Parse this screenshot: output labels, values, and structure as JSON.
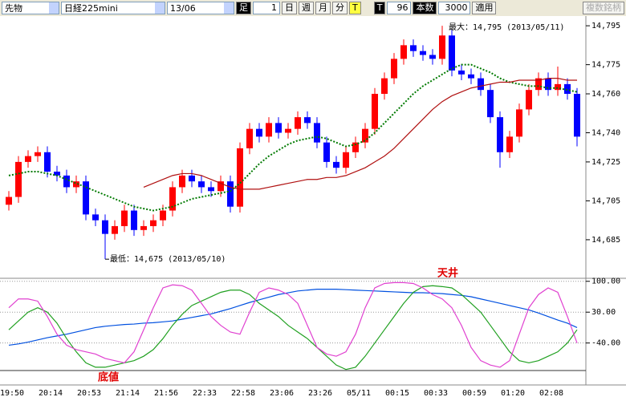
{
  "toolbar": {
    "market": "先物",
    "symbol": "日経225mini",
    "contract": "13/06",
    "bar_label": "足",
    "bar_count": "1",
    "periods": [
      "日",
      "週",
      "月",
      "分",
      "T"
    ],
    "tick_label": "T",
    "count": "96",
    "count_label": "本数",
    "count_max": "3000",
    "apply": "適用",
    "multi": "複数銘柄"
  },
  "chart_data": [
    {
      "type": "candlestick",
      "up_color": "#ff0000",
      "down_color": "#0000ff",
      "categories": [
        "19:50",
        null,
        null,
        null,
        "20:14",
        null,
        null,
        null,
        "20:53",
        null,
        null,
        null,
        "21:14",
        null,
        null,
        null,
        "21:56",
        null,
        null,
        null,
        "22:33",
        null,
        null,
        null,
        "22:58",
        null,
        null,
        null,
        "23:06",
        null,
        null,
        null,
        "23:26",
        null,
        null,
        null,
        "05/11",
        null,
        null,
        null,
        "00:15",
        null,
        null,
        null,
        "00:33",
        null,
        null,
        null,
        "00:59",
        null,
        null,
        null,
        "01:20",
        null,
        null,
        null,
        "02:08",
        null,
        null,
        null
      ],
      "open": [
        14703,
        14707,
        14725,
        14728,
        14730,
        14720,
        14718,
        14712,
        14715,
        14698,
        14695,
        14688,
        14692,
        14700,
        14690,
        14692,
        14695,
        14700,
        14712,
        14718,
        14715,
        14712,
        14710,
        14715,
        14702,
        14732,
        14742,
        14738,
        14745,
        14740,
        14742,
        14748,
        14745,
        14735,
        14725,
        14722,
        14730,
        14735,
        14742,
        14760,
        14768,
        14778,
        14785,
        14782,
        14780,
        14778,
        14790,
        14772,
        14770,
        14768,
        14762,
        14748,
        14730,
        14738,
        14752,
        14762,
        14768,
        14762,
        14765,
        14760
      ],
      "high": [
        14710,
        14728,
        14731,
        14733,
        14733,
        14723,
        14721,
        14718,
        14718,
        14701,
        14698,
        14695,
        14703,
        14703,
        14695,
        14698,
        14703,
        14715,
        14721,
        14721,
        14718,
        14715,
        14718,
        14718,
        14735,
        14745,
        14745,
        14748,
        14748,
        14745,
        14751,
        14751,
        14748,
        14738,
        14728,
        14733,
        14738,
        14745,
        14763,
        14771,
        14781,
        14788,
        14788,
        14785,
        14783,
        14795,
        14793,
        14775,
        14773,
        14771,
        14765,
        14751,
        14741,
        14755,
        14765,
        14771,
        14771,
        14774,
        14768,
        14763
      ],
      "low": [
        14700,
        14704,
        14722,
        14725,
        14717,
        14715,
        14709,
        14709,
        14695,
        14692,
        14675,
        14685,
        14689,
        14687,
        14687,
        14689,
        14692,
        14697,
        14709,
        14712,
        14709,
        14707,
        14707,
        14699,
        14699,
        14729,
        14735,
        14735,
        14737,
        14737,
        14739,
        14742,
        14732,
        14722,
        14719,
        14719,
        14727,
        14732,
        14739,
        14757,
        14765,
        14775,
        14779,
        14777,
        14775,
        14775,
        14769,
        14767,
        14765,
        14759,
        14745,
        14722,
        14727,
        14735,
        14749,
        14759,
        14759,
        14759,
        14757,
        14733
      ],
      "close": [
        14707,
        14725,
        14728,
        14730,
        14720,
        14718,
        14712,
        14715,
        14698,
        14695,
        14688,
        14692,
        14700,
        14690,
        14692,
        14695,
        14700,
        14712,
        14718,
        14715,
        14712,
        14710,
        14715,
        14702,
        14732,
        14742,
        14738,
        14745,
        14740,
        14742,
        14748,
        14745,
        14735,
        14725,
        14722,
        14730,
        14735,
        14742,
        14760,
        14768,
        14778,
        14785,
        14782,
        14780,
        14778,
        14790,
        14772,
        14770,
        14768,
        14762,
        14748,
        14730,
        14738,
        14752,
        14762,
        14768,
        14762,
        14765,
        14760,
        14738
      ],
      "overlays": [
        {
          "color": "#007a00",
          "dotted": true,
          "values": [
            14718,
            14719,
            14720,
            14720,
            14719,
            14718,
            14716,
            14714,
            14712,
            14710,
            14708,
            14706,
            14704,
            14702,
            14701,
            14700,
            14701,
            14702,
            14704,
            14706,
            14707,
            14708,
            14709,
            14710,
            14714,
            14719,
            14724,
            14728,
            14731,
            14734,
            14736,
            14737,
            14738,
            14737,
            14735,
            14733,
            14734,
            14736,
            14740,
            14745,
            14750,
            14755,
            14760,
            14764,
            14767,
            14770,
            14773,
            14775,
            14775,
            14773,
            14771,
            14768,
            14766,
            14765,
            14764,
            14764,
            14763,
            14763,
            14762,
            14761
          ]
        },
        {
          "color": "#b01010",
          "dotted": false,
          "values": [
            null,
            null,
            null,
            null,
            null,
            null,
            null,
            null,
            null,
            null,
            null,
            null,
            null,
            null,
            14712,
            14714,
            14716,
            14718,
            14719,
            14719,
            14718,
            14716,
            14714,
            14712,
            14711,
            14711,
            14711,
            14712,
            14713,
            14714,
            14715,
            14716,
            14716,
            14717,
            14717,
            14718,
            14720,
            14722,
            14725,
            14728,
            14732,
            14737,
            14742,
            14747,
            14752,
            14756,
            14759,
            14761,
            14763,
            14764,
            14765,
            14766,
            14766,
            14767,
            14767,
            14767,
            14768,
            14768,
            14767,
            14767
          ]
        }
      ],
      "ylim": [
        14666,
        14800
      ],
      "yticks": [
        {
          "value": 14685,
          "label": "14,685"
        },
        {
          "value": 14705,
          "label": "14,705"
        },
        {
          "value": 14725,
          "label": "14,725"
        },
        {
          "value": 14740,
          "label": "14,740"
        },
        {
          "value": 14760,
          "label": "14,760"
        },
        {
          "value": 14775,
          "label": "14,775"
        },
        {
          "value": 14795,
          "label": "14,795"
        }
      ],
      "max_label": "最大：14,795 (2013/05/11)",
      "min_label": "最低：14,675 (2013/05/10)"
    },
    {
      "type": "line",
      "series": [
        {
          "color": "#0050e0",
          "values": [
            -45,
            -42,
            -38,
            -33,
            -28,
            -24,
            -20,
            -15,
            -10,
            -5,
            -2,
            0,
            2,
            3,
            5,
            6,
            8,
            10,
            14,
            18,
            22,
            26,
            32,
            38,
            45,
            52,
            58,
            64,
            70,
            74,
            78,
            80,
            82,
            82,
            82,
            81,
            80,
            79,
            78,
            77,
            76,
            75,
            74,
            74,
            73,
            72,
            70,
            68,
            65,
            60,
            55,
            50,
            45,
            40,
            35,
            28,
            20,
            12,
            5,
            -5
          ]
        },
        {
          "color": "#20a020",
          "values": [
            -10,
            10,
            30,
            40,
            30,
            5,
            -30,
            -60,
            -85,
            -95,
            -95,
            -90,
            -85,
            -80,
            -70,
            -55,
            -30,
            0,
            25,
            45,
            55,
            65,
            75,
            80,
            80,
            70,
            50,
            35,
            20,
            0,
            -15,
            -30,
            -50,
            -70,
            -90,
            -100,
            -95,
            -70,
            -40,
            -10,
            20,
            50,
            75,
            88,
            90,
            88,
            85,
            70,
            50,
            30,
            0,
            -30,
            -60,
            -80,
            -85,
            -80,
            -70,
            -60,
            -40,
            -10
          ]
        },
        {
          "color": "#e040d0",
          "values": [
            40,
            60,
            60,
            55,
            20,
            -20,
            -45,
            -55,
            -60,
            -65,
            -75,
            -80,
            -85,
            -60,
            -10,
            40,
            85,
            92,
            90,
            80,
            50,
            20,
            0,
            -15,
            -20,
            30,
            75,
            85,
            80,
            70,
            50,
            0,
            -50,
            -65,
            -70,
            -60,
            -20,
            40,
            85,
            95,
            97,
            97,
            95,
            85,
            70,
            60,
            40,
            0,
            -50,
            -80,
            -90,
            -95,
            -80,
            -20,
            40,
            70,
            85,
            75,
            20,
            -40
          ]
        }
      ],
      "ylim": [
        -117,
        105
      ],
      "yticks": [
        {
          "value": 100,
          "label": "100.00"
        },
        {
          "value": 30,
          "label": "30.00"
        },
        {
          "value": -40,
          "label": "-40.00"
        }
      ],
      "top_label": "天井",
      "bottom_label": "底値"
    }
  ]
}
